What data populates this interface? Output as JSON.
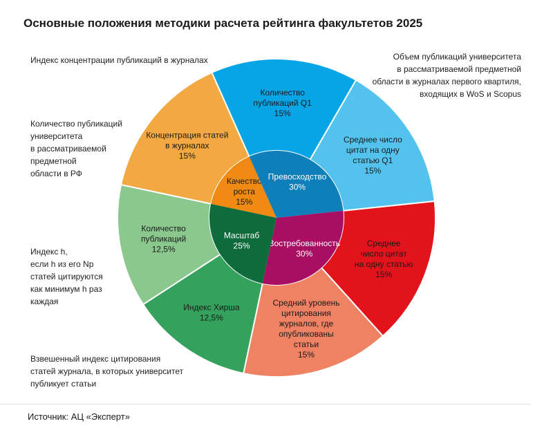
{
  "title": "Основные положения методики расчета рейтинга факультетов 2025",
  "source": "Источник: АЦ «Эксперт»",
  "notes": {
    "concentration": "Индекс концентрации публикаций в журналах",
    "q1": "Объем публикаций университета\nв рассматриваемой предметной\nобласти в журналах первого квартиля,\nвходящих в WoS и Scopus",
    "count_rf": "Количество публикаций\nуниверситета\nв рассматриваемой\nпредметной\nобласти в РФ",
    "hirsch": "Индекс h,\nесли h из его Np\nстатей цитируются\nкак минимум h раз\nкаждая",
    "weighted": "Взвешенный индекс цитирования\nстатей журнала, в которых университет\nпубликует статьи"
  },
  "chart_data": {
    "type": "pie",
    "inner": [
      {
        "label": "Качество\nроста\n15%",
        "value": 15,
        "color": "#f08a12"
      },
      {
        "label": "Превосходство\n30%",
        "value": 30,
        "color": "#0f7fb9"
      },
      {
        "label": "Востребованность\n30%",
        "value": 30,
        "color": "#a80f63"
      },
      {
        "label": "Масштаб\n25%",
        "value": 25,
        "color": "#0d6b3c"
      }
    ],
    "outer": [
      {
        "label": "Концентрация статей\nв журналах\n15%",
        "value": 15,
        "color": "#f2a942",
        "group": "Качество роста"
      },
      {
        "label": "Количество\nпубликаций Q1\n15%",
        "value": 15,
        "color": "#08a5e6",
        "group": "Превосходство"
      },
      {
        "label": "Среднее число\nцитат на одну\nстатью Q1\n15%",
        "value": 15,
        "color": "#53c3ee",
        "group": "Превосходство"
      },
      {
        "label": "Среднее\nчисло цитат\nна одну статью\n15%",
        "value": 15,
        "color": "#e2131b",
        "group": "Востребованность"
      },
      {
        "label": "Средний уровень\nцитирования\nжурналов, где\nопубликованы\nстатьи\n15%",
        "value": 15,
        "color": "#ee8262",
        "group": "Востребованность"
      },
      {
        "label": "Индекс Хирша\n12,5%",
        "value": 12.5,
        "color": "#34a15c",
        "group": "Масштаб"
      },
      {
        "label": "Количество\nпубликаций\n12,5%",
        "value": 12.5,
        "color": "#8bc88e",
        "group": "Масштаб"
      }
    ]
  }
}
